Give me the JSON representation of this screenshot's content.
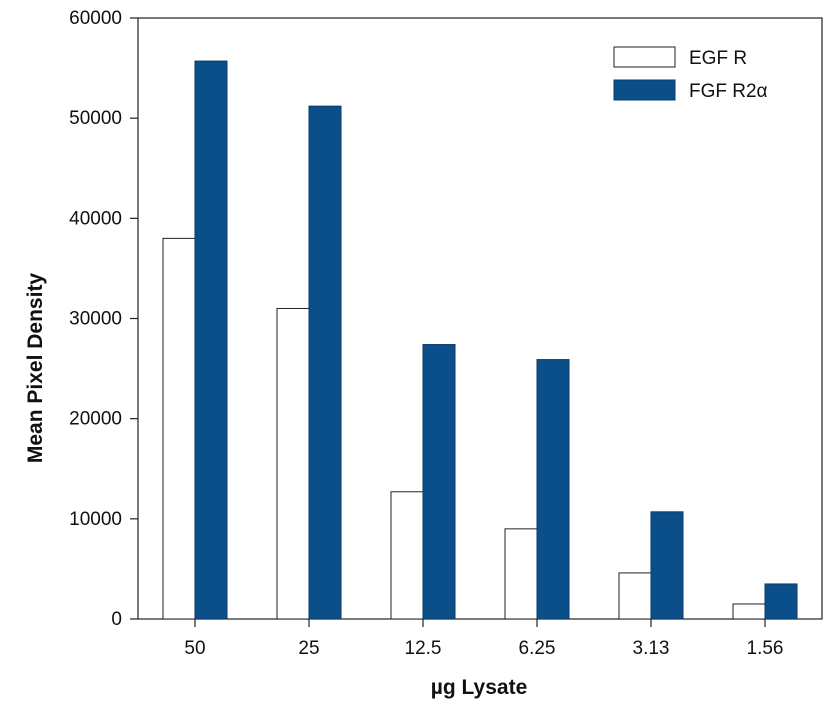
{
  "chart_data": {
    "type": "bar",
    "title": "",
    "xlabel": "µg Lysate",
    "ylabel": "Mean Pixel Density",
    "categories": [
      "50",
      "25",
      "12.5",
      "6.25",
      "3.13",
      "1.56"
    ],
    "series": [
      {
        "name": "EGF R",
        "values": [
          38000,
          31000,
          12700,
          9000,
          4600,
          1500
        ],
        "color": "#ffffff",
        "stroke": "#222222"
      },
      {
        "name": "FGF R2α",
        "values": [
          55700,
          51200,
          27400,
          25900,
          10700,
          3500
        ],
        "color": "#0a4f8a",
        "stroke": "#0a3a66"
      }
    ],
    "ylim": [
      0,
      60000
    ],
    "yticks": [
      "0",
      "10000",
      "20000",
      "30000",
      "40000",
      "50000",
      "60000"
    ],
    "grid": false,
    "legend": "top-right"
  }
}
